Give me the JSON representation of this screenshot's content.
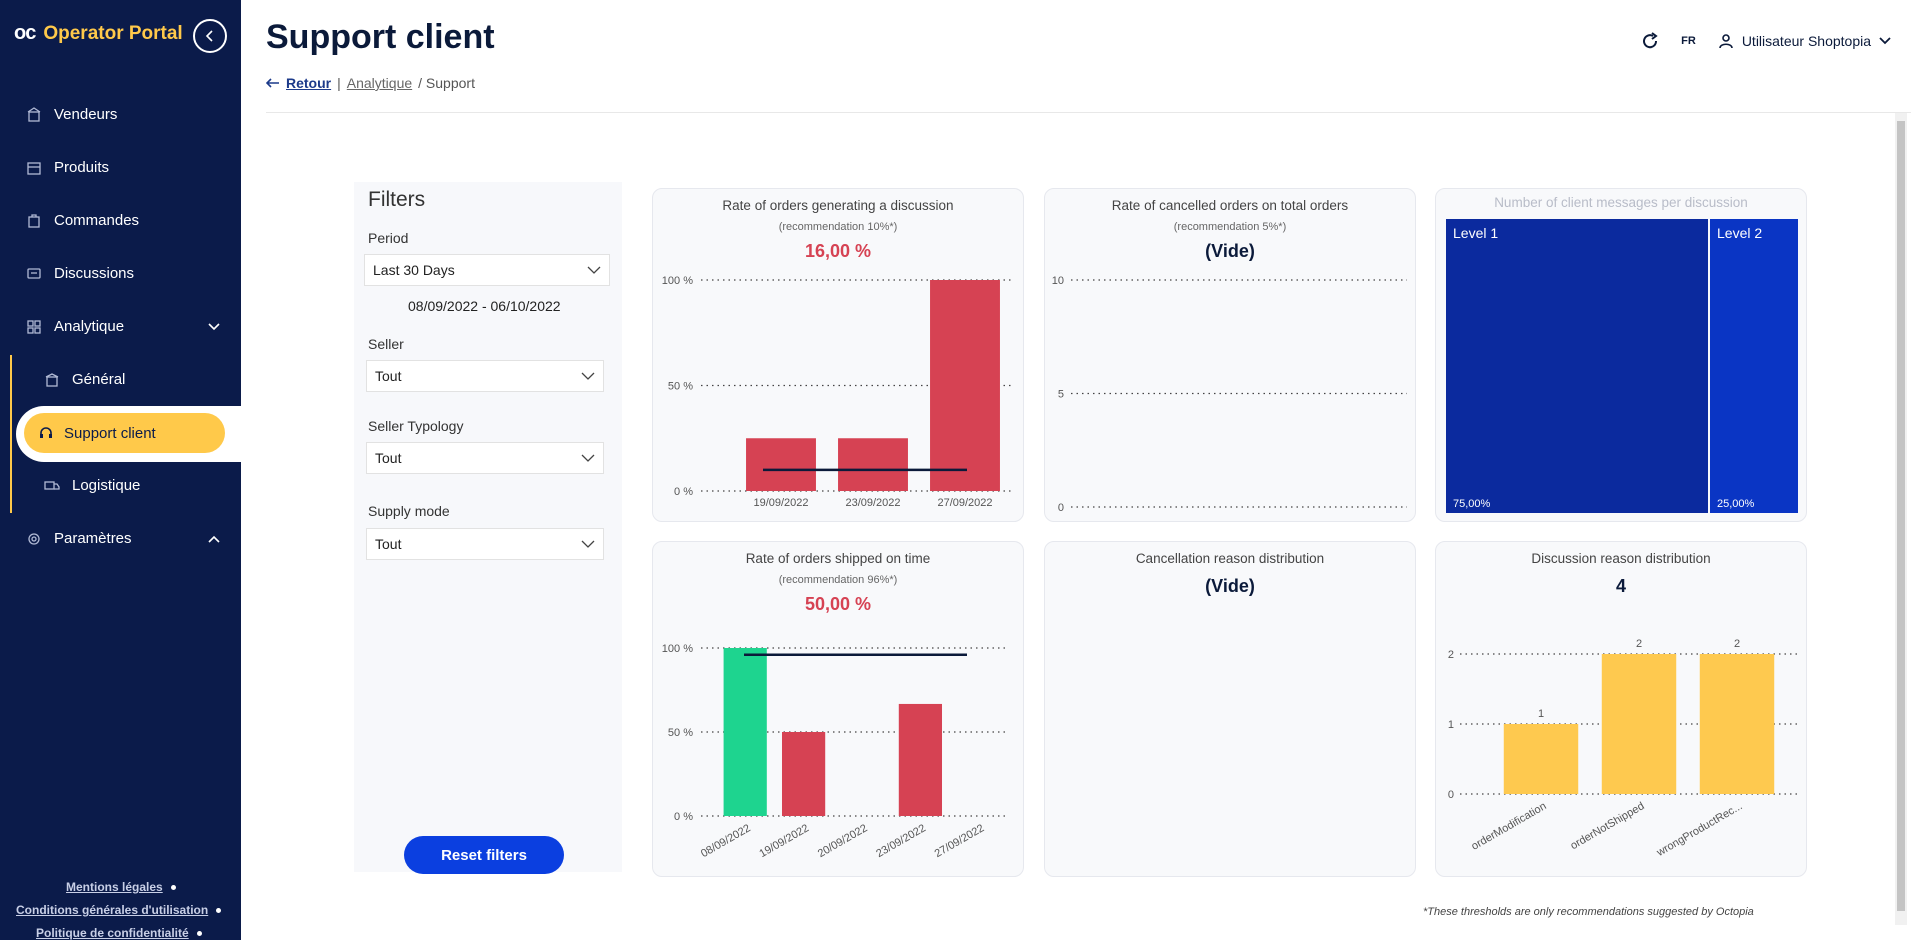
{
  "sidebar": {
    "logo": "oc",
    "app_name": "Operator Portal",
    "items": [
      {
        "label": "Vendeurs"
      },
      {
        "label": "Produits"
      },
      {
        "label": "Commandes"
      },
      {
        "label": "Discussions"
      },
      {
        "label": "Analytique"
      },
      {
        "label": "Général"
      },
      {
        "label": "Support client"
      },
      {
        "label": "Logistique"
      },
      {
        "label": "Paramètres"
      }
    ],
    "footer": [
      "Mentions légales",
      "Conditions générales d'utilisation",
      "Politique de confidentialité"
    ]
  },
  "header": {
    "title": "Support client",
    "back": "Retour",
    "crumb1": "Analytique",
    "crumb2": "/ Support",
    "lang": "FR",
    "user": "Utilisateur Shoptopia"
  },
  "filters": {
    "title": "Filters",
    "period_label": "Period",
    "period_value": "Last 30 Days",
    "date_range": "08/09/2022 - 06/10/2022",
    "seller_label": "Seller",
    "seller_value": "Tout",
    "typology_label": "Seller Typology",
    "typology_value": "Tout",
    "supply_label": "Supply mode",
    "supply_value": "Tout",
    "reset": "Reset filters"
  },
  "colors": {
    "red": "#d64253",
    "green": "#1ed48f",
    "yellow": "#fec94f",
    "navy": "#0b2a9e",
    "blue": "#0a35c4"
  },
  "cards": {
    "c1": {
      "title": "Rate of orders generating a discussion",
      "rec": "(recommendation 10%*)",
      "value": "16,00 %"
    },
    "c2": {
      "title": "Rate of cancelled orders on total orders",
      "rec": "(recommendation 5%*)",
      "value": "(Vide)"
    },
    "c3": {
      "title": "Number of client messages per discussion"
    },
    "c4": {
      "title": "Rate of orders shipped on time",
      "rec": "(recommendation 96%*)",
      "value": "50,00 %"
    },
    "c5": {
      "title": "Cancellation reason distribution",
      "value": "(Vide)"
    },
    "c6": {
      "title": "Discussion reason distribution",
      "value": "4"
    }
  },
  "footnote": "*These thresholds are only recommendations suggested by Octopia",
  "chart_data": [
    {
      "type": "bar",
      "id": "c1",
      "categories": [
        "19/09/2022",
        "23/09/2022",
        "27/09/2022"
      ],
      "values": [
        25,
        25,
        100
      ],
      "ylim": [
        0,
        100
      ],
      "yticks": [
        "0 %",
        "50 %",
        "100 %"
      ],
      "reference": 10
    },
    {
      "type": "bar",
      "id": "c2",
      "categories": [],
      "values": [],
      "ylim": [
        0,
        10
      ],
      "yticks": [
        "0",
        "5",
        "10"
      ]
    },
    {
      "type": "treemap",
      "id": "c3",
      "labels": [
        "Level 1",
        "Level 2"
      ],
      "values": [
        75,
        25
      ],
      "value_labels": [
        "75,00%",
        "25,00%"
      ]
    },
    {
      "type": "bar",
      "id": "c4",
      "categories": [
        "08/09/2022",
        "19/09/2022",
        "20/09/2022",
        "23/09/2022",
        "27/09/2022"
      ],
      "values": [
        100,
        50,
        0,
        66.7,
        0
      ],
      "colors": [
        "green",
        "red",
        "red",
        "red",
        "red"
      ],
      "ylim": [
        0,
        100
      ],
      "yticks": [
        "0 %",
        "50 %",
        "100 %"
      ],
      "reference": 96
    },
    {
      "type": "bar",
      "id": "c6",
      "categories": [
        "orderModification",
        "orderNotShipped",
        "wrongProductRec..."
      ],
      "values": [
        1,
        2,
        2
      ],
      "ylim": [
        0,
        2
      ],
      "yticks": [
        "0",
        "1",
        "2"
      ]
    }
  ]
}
